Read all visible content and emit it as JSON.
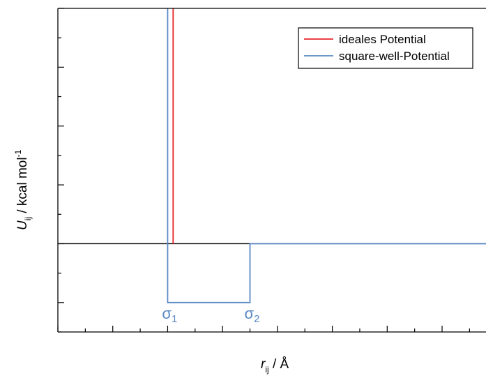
{
  "chart_data": {
    "type": "line",
    "title": "",
    "xlabel": {
      "symbol": "r",
      "subscript": "ij",
      "unit": " / Å"
    },
    "ylabel": {
      "symbol": "U",
      "subscript": "ij",
      "unit": " / kcal mol",
      "superscript": "-1"
    },
    "xlim": [
      0,
      7.8
    ],
    "ylim": [
      -1.5,
      4
    ],
    "grid": false,
    "legend": {
      "position": "top-right"
    },
    "series": [
      {
        "name": "ideales Potential",
        "color": "#e8262b",
        "x": [
          2.1,
          2.1
        ],
        "y": [
          0.0,
          4.0
        ]
      },
      {
        "name": "square-well-Potential",
        "color": "#5b88c3",
        "x": [
          2.0,
          2.0,
          3.5,
          3.5,
          7.8
        ],
        "y": [
          4.0,
          -1.0,
          -1.0,
          0.0,
          0.0
        ]
      }
    ],
    "zero_line": {
      "y": 0,
      "x": [
        0,
        3.5
      ],
      "color": "#000000"
    },
    "annotations": [
      {
        "base": "σ",
        "sub": "1",
        "x": 2.0,
        "color": "#5b88c3"
      },
      {
        "base": "σ",
        "sub": "2",
        "x": 3.5,
        "color": "#5b88c3"
      }
    ]
  }
}
